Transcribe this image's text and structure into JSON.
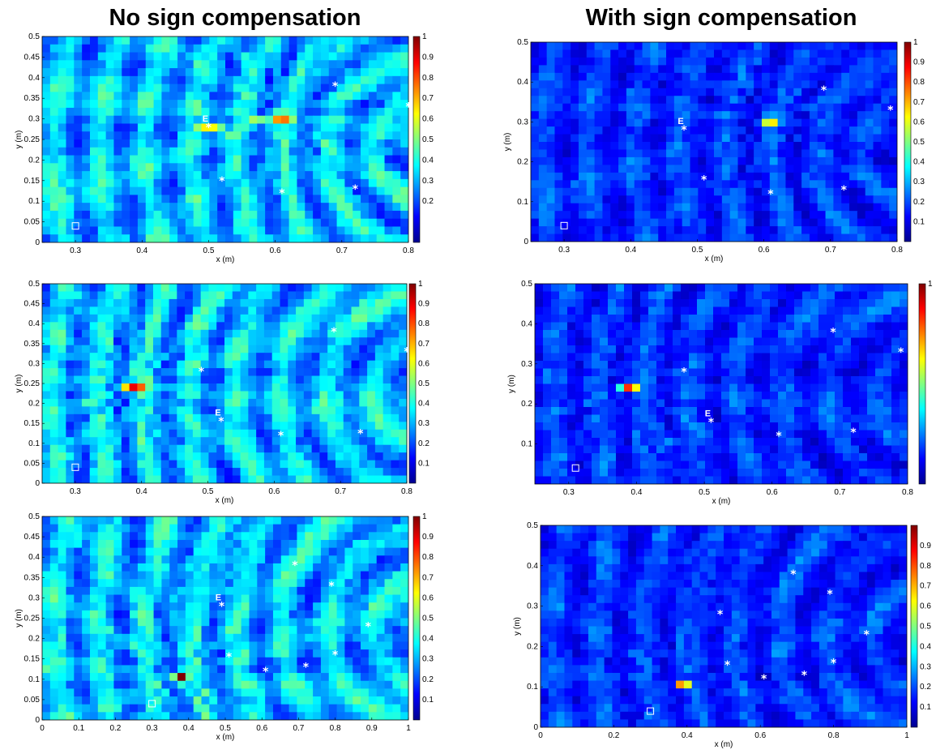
{
  "column_titles": {
    "left": "No sign compensation",
    "right": "With sign compensation"
  },
  "colormap": [
    "#00008f",
    "#0000ff",
    "#0080ff",
    "#00ffff",
    "#80ff80",
    "#ffff00",
    "#ff8000",
    "#ff0000",
    "#800000"
  ],
  "chart_data": [
    {
      "type": "heatmap",
      "panel": "row1-left",
      "title": "",
      "xlabel": "x (m)",
      "ylabel": "y (m)",
      "xlim": [
        0.25,
        0.8
      ],
      "ylim": [
        0,
        0.5
      ],
      "xticks": [
        "0.3",
        "0.4",
        "0.5",
        "0.6",
        "0.7",
        "0.8"
      ],
      "yticks": [
        "0",
        "0.05",
        "0.1",
        "0.15",
        "0.2",
        "0.25",
        "0.3",
        "0.35",
        "0.4",
        "0.45",
        "0.5"
      ],
      "colorbar_ticks": [
        "0.2",
        "0.3",
        "0.4",
        "0.5",
        "0.6",
        "0.7",
        "0.8",
        "0.9",
        "1"
      ],
      "peaks": [
        {
          "x": 0.61,
          "y": 0.305,
          "v": 1.0,
          "sx": 0.018,
          "sy": 0.01
        },
        {
          "x": 0.5,
          "y": 0.28,
          "v": 0.65,
          "sx": 0.025,
          "sy": 0.012
        },
        {
          "x": 0.57,
          "y": 0.3,
          "v": 0.55,
          "sx": 0.02,
          "sy": 0.01
        }
      ],
      "markers": [
        {
          "x": 0.5,
          "y": 0.28,
          "label": "E"
        },
        {
          "x": 0.52,
          "y": 0.15
        },
        {
          "x": 0.61,
          "y": 0.12
        },
        {
          "x": 0.72,
          "y": 0.13
        },
        {
          "x": 0.69,
          "y": 0.38
        },
        {
          "x": 0.8,
          "y": 0.33
        }
      ],
      "box": {
        "x": 0.3,
        "y": 0.04
      }
    },
    {
      "type": "heatmap",
      "panel": "row1-right",
      "title": "",
      "xlabel": "x (m)",
      "ylabel": "y (m)",
      "xlim": [
        0.25,
        0.8
      ],
      "ylim": [
        0,
        0.5
      ],
      "xticks": [
        "0.3",
        "0.4",
        "0.5",
        "0.6",
        "0.7",
        "0.8"
      ],
      "yticks": [
        "0",
        "0.1",
        "0.2",
        "0.3",
        "0.4",
        "0.5"
      ],
      "colorbar_ticks": [
        "0.1",
        "0.2",
        "0.3",
        "0.4",
        "0.5",
        "0.6",
        "0.7",
        "0.8",
        "0.9",
        "1"
      ],
      "peaks": [
        {
          "x": 0.61,
          "y": 0.305,
          "v": 1.0,
          "sx": 0.012,
          "sy": 0.008
        },
        {
          "x": 0.47,
          "y": 0.27,
          "v": 0.35,
          "sx": 0.015,
          "sy": 0.01
        }
      ],
      "markers": [
        {
          "x": 0.48,
          "y": 0.28,
          "label": "E"
        },
        {
          "x": 0.51,
          "y": 0.155
        },
        {
          "x": 0.61,
          "y": 0.12
        },
        {
          "x": 0.72,
          "y": 0.13
        },
        {
          "x": 0.69,
          "y": 0.38
        },
        {
          "x": 0.79,
          "y": 0.33
        }
      ],
      "box": {
        "x": 0.3,
        "y": 0.04
      }
    },
    {
      "type": "heatmap",
      "panel": "row2-left",
      "title": "",
      "xlabel": "x (m)",
      "ylabel": "y (m)",
      "xlim": [
        0.25,
        0.8
      ],
      "ylim": [
        0,
        0.5
      ],
      "xticks": [
        "0.3",
        "0.4",
        "0.5",
        "0.6",
        "0.7",
        "0.8"
      ],
      "yticks": [
        "0",
        "0.05",
        "0.1",
        "0.15",
        "0.2",
        "0.25",
        "0.3",
        "0.35",
        "0.4",
        "0.45",
        "0.5"
      ],
      "colorbar_ticks": [
        "0.1",
        "0.2",
        "0.3",
        "0.4",
        "0.5",
        "0.6",
        "0.7",
        "0.8",
        "0.9",
        "1"
      ],
      "peaks": [
        {
          "x": 0.39,
          "y": 0.245,
          "v": 1.0,
          "sx": 0.018,
          "sy": 0.01
        },
        {
          "x": 0.51,
          "y": 0.155,
          "v": 0.35,
          "sx": 0.02,
          "sy": 0.015
        }
      ],
      "markers": [
        {
          "x": 0.49,
          "y": 0.28
        },
        {
          "x": 0.52,
          "y": 0.155,
          "label": "E"
        },
        {
          "x": 0.61,
          "y": 0.12
        },
        {
          "x": 0.73,
          "y": 0.125
        },
        {
          "x": 0.69,
          "y": 0.38
        },
        {
          "x": 0.8,
          "y": 0.33
        }
      ],
      "box": {
        "x": 0.3,
        "y": 0.04
      }
    },
    {
      "type": "heatmap",
      "panel": "row2-right",
      "title": "",
      "xlabel": "x (m)",
      "ylabel": "y (m)",
      "xlim": [
        0.25,
        0.8
      ],
      "ylim": [
        0,
        0.5
      ],
      "xticks": [
        "0.3",
        "0.4",
        "0.5",
        "0.6",
        "0.7",
        "0.8"
      ],
      "yticks": [
        "0.1",
        "0.2",
        "0.3",
        "0.4",
        "0.5"
      ],
      "colorbar_ticks": [
        "1"
      ],
      "peaks": [
        {
          "x": 0.39,
          "y": 0.245,
          "v": 1.0,
          "sx": 0.012,
          "sy": 0.008
        },
        {
          "x": 0.45,
          "y": 0.11,
          "v": 0.3,
          "sx": 0.012,
          "sy": 0.01
        }
      ],
      "markers": [
        {
          "x": 0.47,
          "y": 0.28
        },
        {
          "x": 0.51,
          "y": 0.155,
          "label": "E"
        },
        {
          "x": 0.61,
          "y": 0.12
        },
        {
          "x": 0.72,
          "y": 0.13
        },
        {
          "x": 0.69,
          "y": 0.38
        },
        {
          "x": 0.79,
          "y": 0.33
        }
      ],
      "box": {
        "x": 0.31,
        "y": 0.04
      }
    },
    {
      "type": "heatmap",
      "panel": "row3-left",
      "title": "",
      "xlabel": "x (m)",
      "ylabel": "y (m)",
      "xlim": [
        0,
        1
      ],
      "ylim": [
        0,
        0.5
      ],
      "xticks": [
        "0",
        "0.1",
        "0.2",
        "0.3",
        "0.4",
        "0.5",
        "0.6",
        "0.7",
        "0.8",
        "0.9",
        "1"
      ],
      "yticks": [
        "0",
        "0.05",
        "0.1",
        "0.15",
        "0.2",
        "0.25",
        "0.3",
        "0.35",
        "0.4",
        "0.45",
        "0.5"
      ],
      "colorbar_ticks": [
        "0.1",
        "0.2",
        "0.3",
        "0.4",
        "0.5",
        "0.6",
        "0.7",
        "0.8",
        "0.9",
        "1"
      ],
      "peaks": [
        {
          "x": 0.38,
          "y": 0.105,
          "v": 1.0,
          "sx": 0.018,
          "sy": 0.014
        },
        {
          "x": 0.15,
          "y": 0.3,
          "v": 0.4,
          "sx": 0.03,
          "sy": 0.04
        },
        {
          "x": 0.05,
          "y": 0.2,
          "v": 0.45,
          "sx": 0.02,
          "sy": 0.05
        }
      ],
      "markers": [
        {
          "x": 0.49,
          "y": 0.28,
          "label": "E"
        },
        {
          "x": 0.51,
          "y": 0.155
        },
        {
          "x": 0.61,
          "y": 0.12
        },
        {
          "x": 0.72,
          "y": 0.13
        },
        {
          "x": 0.8,
          "y": 0.16
        },
        {
          "x": 0.89,
          "y": 0.23
        },
        {
          "x": 0.79,
          "y": 0.33
        },
        {
          "x": 0.69,
          "y": 0.38
        }
      ],
      "box": {
        "x": 0.3,
        "y": 0.04
      }
    },
    {
      "type": "heatmap",
      "panel": "row3-right",
      "title": "",
      "xlabel": "x (m)",
      "ylabel": "y (m)",
      "xlim": [
        0,
        1
      ],
      "ylim": [
        0,
        0.5
      ],
      "xticks": [
        "0",
        "0.2",
        "0.4",
        "0.6",
        "0.8",
        "1"
      ],
      "yticks": [
        "0",
        "0.1",
        "0.2",
        "0.3",
        "0.4",
        "0.5"
      ],
      "colorbar_ticks": [
        "0.1",
        "0.2",
        "0.3",
        "0.4",
        "0.5",
        "0.6",
        "0.7",
        "0.8",
        "0.9"
      ],
      "peaks": [
        {
          "x": 0.39,
          "y": 0.105,
          "v": 1.0,
          "sx": 0.012,
          "sy": 0.01
        },
        {
          "x": 0.39,
          "y": 0.34,
          "v": 0.3,
          "sx": 0.01,
          "sy": 0.01
        }
      ],
      "markers": [
        {
          "x": 0.49,
          "y": 0.28
        },
        {
          "x": 0.51,
          "y": 0.155
        },
        {
          "x": 0.61,
          "y": 0.12
        },
        {
          "x": 0.72,
          "y": 0.13
        },
        {
          "x": 0.8,
          "y": 0.16
        },
        {
          "x": 0.89,
          "y": 0.23
        },
        {
          "x": 0.79,
          "y": 0.33
        },
        {
          "x": 0.69,
          "y": 0.38
        }
      ],
      "box": {
        "x": 0.3,
        "y": 0.04
      }
    }
  ]
}
